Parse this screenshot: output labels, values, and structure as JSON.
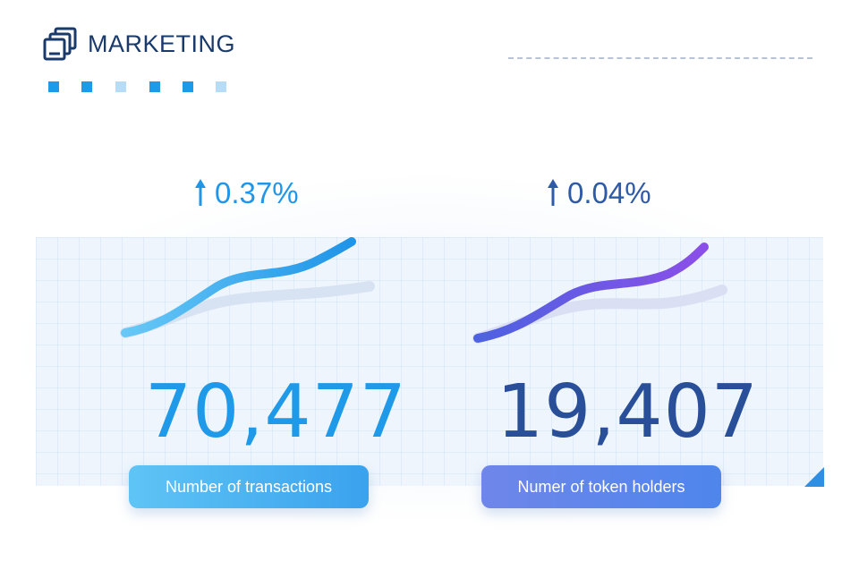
{
  "header": {
    "title": "MARKETING",
    "icon": "stacked-windows-icon"
  },
  "decor": {
    "square_colors": [
      "#1e9be6",
      "#1e9be6",
      "#b6dcf6",
      "#1e9be6",
      "#1e9be6",
      "#b6dcf6"
    ]
  },
  "metrics": [
    {
      "change": "0.37%",
      "change_direction": "up",
      "value": "70,477",
      "label": "Number of  transactions",
      "accent": "#1f9ae8"
    },
    {
      "change": "0.04%",
      "change_direction": "up",
      "value": "19,407",
      "label": "Numer of token holders",
      "accent": "#284f98"
    }
  ]
}
